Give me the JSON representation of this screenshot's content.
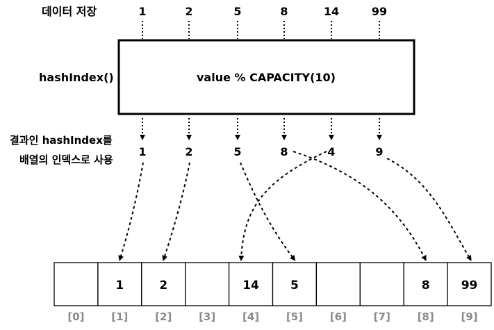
{
  "labels": {
    "data_store": "데이터 저장",
    "function_name": "hashIndex()",
    "formula": "value % CAPACITY(10)",
    "result_line1": "결과인 hashIndex를",
    "result_line2": "배열의 인덱스로 사용"
  },
  "inputs": [
    "1",
    "2",
    "5",
    "8",
    "14",
    "99"
  ],
  "hash_results": [
    "1",
    "2",
    "5",
    "8",
    "4",
    "9"
  ],
  "array_cells": [
    {
      "index": "[0]",
      "value": ""
    },
    {
      "index": "[1]",
      "value": "1"
    },
    {
      "index": "[2]",
      "value": "2"
    },
    {
      "index": "[3]",
      "value": ""
    },
    {
      "index": "[4]",
      "value": "14"
    },
    {
      "index": "[5]",
      "value": "5"
    },
    {
      "index": "[6]",
      "value": ""
    },
    {
      "index": "[7]",
      "value": ""
    },
    {
      "index": "[8]",
      "value": "8"
    },
    {
      "index": "[9]",
      "value": "99"
    }
  ],
  "mapping_to_cell": [
    1,
    2,
    5,
    8,
    4,
    9
  ]
}
